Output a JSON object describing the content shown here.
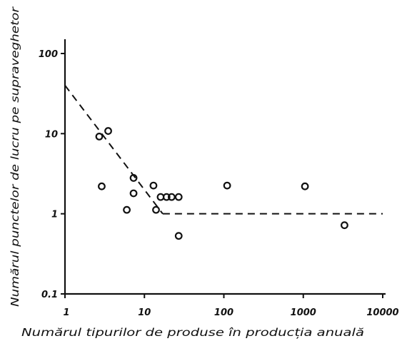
{
  "chart_data": {
    "type": "scatter",
    "title": "",
    "xlabel": "Numărul tipurilor de produse în producția anuală",
    "ylabel": "Numărul punctelor de lucru pe supraveghetor",
    "x_scale": "log",
    "y_scale": "log",
    "xlim": [
      1,
      10000
    ],
    "ylim": [
      0.1,
      100
    ],
    "x_ticks": [
      1,
      10,
      100,
      1000,
      10000
    ],
    "x_tick_labels": [
      "1",
      "10",
      "100",
      "1000",
      "10000"
    ],
    "y_ticks": [
      0.1,
      1,
      10,
      100
    ],
    "y_tick_labels": [
      "0.1",
      "1",
      "10",
      "100"
    ],
    "grid": false,
    "points": [
      {
        "x": 2.7,
        "y": 9.2
      },
      {
        "x": 3.5,
        "y": 10.8
      },
      {
        "x": 2.9,
        "y": 2.2
      },
      {
        "x": 7.3,
        "y": 2.8
      },
      {
        "x": 7.3,
        "y": 1.8
      },
      {
        "x": 6.0,
        "y": 1.12
      },
      {
        "x": 13,
        "y": 2.25
      },
      {
        "x": 14,
        "y": 1.12
      },
      {
        "x": 16,
        "y": 1.62
      },
      {
        "x": 19,
        "y": 1.62
      },
      {
        "x": 22,
        "y": 1.62
      },
      {
        "x": 27,
        "y": 1.62
      },
      {
        "x": 27,
        "y": 0.53
      },
      {
        "x": 110,
        "y": 2.25
      },
      {
        "x": 1050,
        "y": 2.2
      },
      {
        "x": 3300,
        "y": 0.72
      }
    ],
    "trend_lines": [
      {
        "style": "dashed",
        "points": [
          [
            1,
            40
          ],
          [
            17,
            1.0
          ]
        ]
      },
      {
        "style": "dashed",
        "points": [
          [
            17,
            1.0
          ],
          [
            10000,
            1.0
          ]
        ]
      }
    ]
  }
}
